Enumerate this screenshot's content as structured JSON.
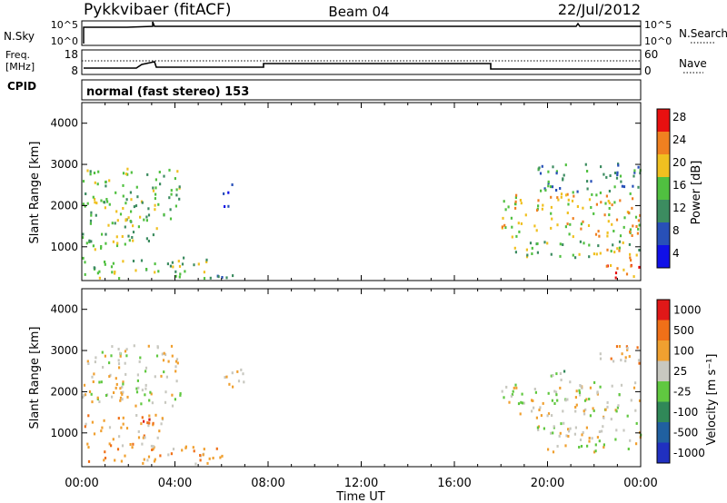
{
  "header": {
    "station": "Pykkvibaer (fitACF)",
    "beam": "Beam 04",
    "date": "22/Jul/2012"
  },
  "noise_panel": {
    "left_label": "N.Sky",
    "left_ticks": [
      "10^5",
      "10^0"
    ],
    "right_ticks": [
      "10^5",
      "10^0"
    ],
    "right_label": "N.Search"
  },
  "freq_panel": {
    "left_label_1": "Freq.",
    "left_label_2": "[MHz]",
    "left_ticks": [
      "18",
      "8"
    ],
    "right_ticks": [
      "60",
      "0"
    ],
    "right_label": "Nave"
  },
  "cpid": {
    "label": "CPID",
    "text": "normal (fast stereo) 153"
  },
  "chart_data": [
    {
      "type": "heatmap",
      "name": "power",
      "ylabel": "Slant Range [km]",
      "y_ticks": [
        "1000",
        "2000",
        "3000",
        "4000"
      ],
      "x_ticks": [
        "00:00",
        "04:00",
        "08:00",
        "12:00",
        "16:00",
        "20:00",
        "00:00"
      ],
      "colorbar": {
        "label": "Power [dB]",
        "tick_labels": [
          "4",
          "8",
          "12",
          "16",
          "20",
          "24",
          "28"
        ],
        "colors": [
          "#1010e8",
          "#2850b8",
          "#3c8c60",
          "#50c040",
          "#f0c020",
          "#f08020",
          "#e81010"
        ]
      },
      "regions": [
        {
          "t0": 0.0,
          "t1": 4.2,
          "r0": 1500,
          "r1": 2900,
          "level": 3
        },
        {
          "t0": 0.0,
          "t1": 3.2,
          "r0": 900,
          "r1": 1500,
          "level": 3
        },
        {
          "t0": 0.0,
          "t1": 5.5,
          "r0": 200,
          "r1": 700,
          "level": 3
        },
        {
          "t0": 5.5,
          "t1": 7.5,
          "r0": 200,
          "r1": 350,
          "level": 2
        },
        {
          "t0": 6.0,
          "t1": 6.5,
          "r0": 1900,
          "r1": 2500,
          "level": 1
        },
        {
          "t0": 18.0,
          "t1": 24.0,
          "r0": 1200,
          "r1": 2300,
          "level": 4
        },
        {
          "t0": 18.5,
          "t1": 24.0,
          "r0": 700,
          "r1": 1100,
          "level": 3
        },
        {
          "t0": 19.5,
          "t1": 24.0,
          "r0": 2300,
          "r1": 3000,
          "level": 2
        },
        {
          "t0": 22.5,
          "t1": 24.0,
          "r0": 200,
          "r1": 900,
          "level": 5
        }
      ]
    },
    {
      "type": "heatmap",
      "name": "velocity",
      "ylabel": "Slant Range [km]",
      "y_ticks": [
        "1000",
        "2000",
        "3000",
        "4000"
      ],
      "x_ticks": [
        "00:00",
        "04:00",
        "08:00",
        "12:00",
        "16:00",
        "20:00",
        "00:00"
      ],
      "xlabel": "Time UT",
      "colorbar": {
        "label": "Velocity [m s⁻¹]",
        "tick_labels": [
          "1000",
          "500",
          "100",
          "25",
          "-25",
          "-100",
          "-500",
          "-1000"
        ],
        "colors": [
          "#2030c0",
          "#2060a0",
          "#308858",
          "#60c840",
          "#c8c8c0",
          "#f0a030",
          "#f07018",
          "#e01818"
        ]
      },
      "regions": [
        {
          "t0": 0.0,
          "t1": 4.2,
          "r0": 1600,
          "r1": 3100,
          "level": 4
        },
        {
          "t0": 0.0,
          "t1": 3.5,
          "r0": 800,
          "r1": 1400,
          "level": 5
        },
        {
          "t0": 0.0,
          "t1": 6.0,
          "r0": 200,
          "r1": 700,
          "level": 5
        },
        {
          "t0": 2.6,
          "t1": 3.2,
          "r0": 900,
          "r1": 1300,
          "level": 7
        },
        {
          "t0": 6.0,
          "t1": 7.0,
          "r0": 1900,
          "r1": 2500,
          "level": 4
        },
        {
          "t0": 18.0,
          "t1": 24.0,
          "r0": 1300,
          "r1": 2200,
          "level": 4
        },
        {
          "t0": 19.5,
          "t1": 24.0,
          "r0": 500,
          "r1": 1200,
          "level": 4
        },
        {
          "t0": 20.0,
          "t1": 21.0,
          "r0": 2200,
          "r1": 2600,
          "level": 3
        },
        {
          "t0": 22.0,
          "t1": 24.0,
          "r0": 2600,
          "r1": 3100,
          "level": 5
        }
      ]
    }
  ]
}
